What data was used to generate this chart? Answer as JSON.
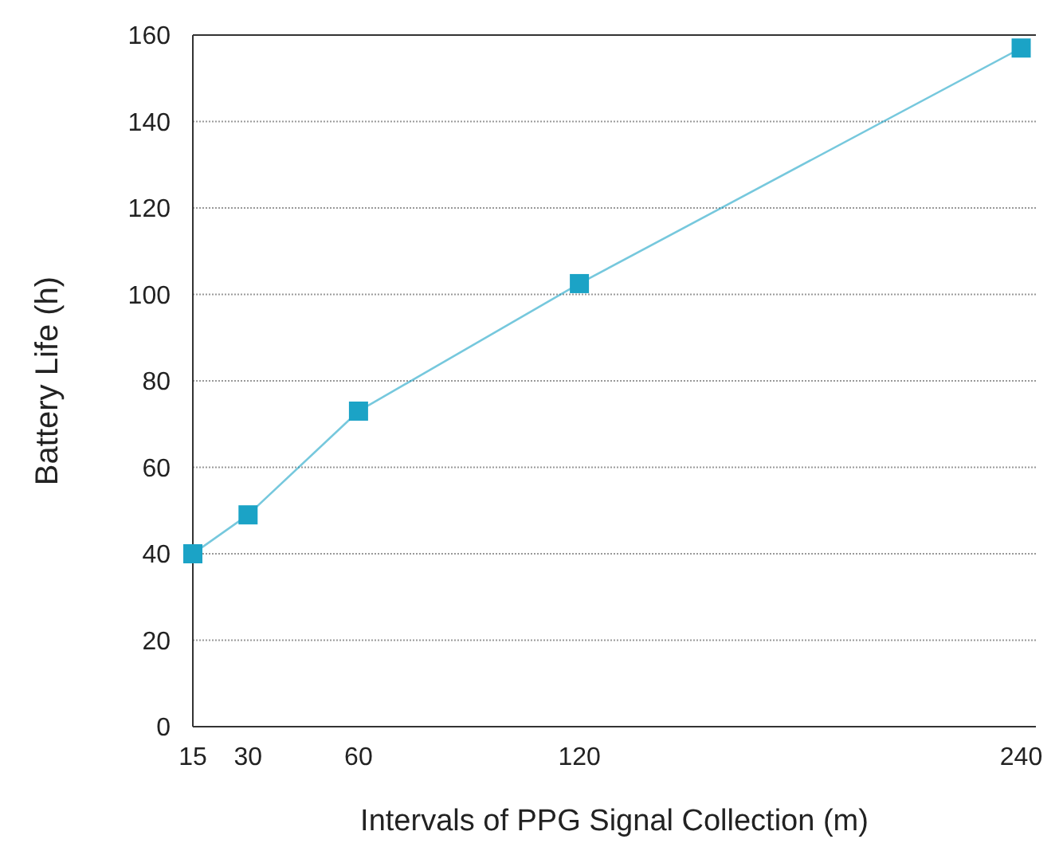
{
  "chart_data": {
    "type": "line",
    "xlabel": "Intervals of PPG Signal Collection (m)",
    "ylabel": "Battery Life (h)",
    "x": [
      15,
      30,
      60,
      120,
      240
    ],
    "series": [
      {
        "color": "#1ba3c6",
        "values": [
          40,
          49,
          73,
          102.5,
          157
        ]
      }
    ],
    "xlim": [
      15,
      244
    ],
    "xticks": [
      15,
      30,
      60,
      120,
      240
    ],
    "ylim": [
      0,
      160
    ],
    "yticks": [
      0,
      20,
      40,
      60,
      80,
      100,
      120,
      140,
      160
    ],
    "grid": "y",
    "marker": "square",
    "line_style": "solid"
  }
}
